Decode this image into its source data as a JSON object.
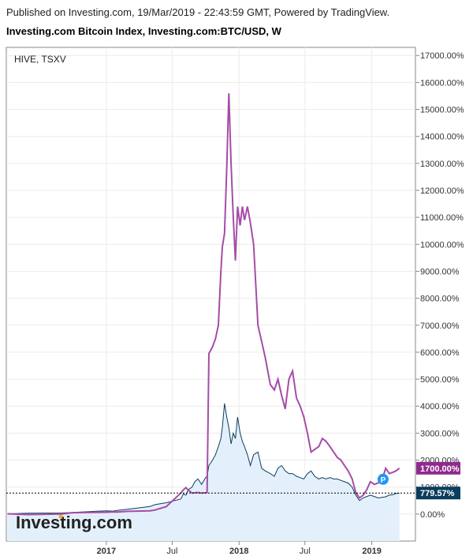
{
  "header": {
    "published": "Published on Investing.com, 19/Mar/2019 - 22:43:59 GMT, Powered by TradingView.",
    "title": "Investing.com Bitcoin Index, Investing.com:BTC/USD, W"
  },
  "colors": {
    "hive": "#a64ca6",
    "btc": "#0b3d5e",
    "area_fill": "#e3f0fb",
    "hive_badge": "#8e2a8e",
    "btc_badge": "#0b3d5e",
    "marker": "#2196f3"
  },
  "chart_data": {
    "type": "line",
    "legend": "HIVE, TSXV",
    "logo": "Investing.com",
    "marker_label": "P",
    "x_ticks": [
      "2017",
      "Jul",
      "2018",
      "Jul",
      "2019"
    ],
    "y_ticks": [
      "0.00%",
      "1000.00%",
      "2000.00%",
      "3000.00%",
      "4000.00%",
      "5000.00%",
      "6000.00%",
      "7000.00%",
      "8000.00%",
      "9000.00%",
      "10000.00%",
      "11000.00%",
      "12000.00%",
      "13000.00%",
      "14000.00%",
      "15000.00%",
      "16000.00%",
      "17000.00%"
    ],
    "ylim": [
      -1000,
      17300
    ],
    "xlim": [
      "2016-04",
      "2019-05"
    ],
    "grid": true,
    "last_values": {
      "hive_label": "1700.00%",
      "btc_label": "779.57%",
      "hive": 1700,
      "btc": 779.57
    },
    "series": [
      {
        "name": "HIVE, TSXV",
        "x": [
          "2016-04-04",
          "2016-06-01",
          "2016-09-01",
          "2016-10-01",
          "2017-01-01",
          "2017-01-20",
          "2017-02-01",
          "2017-03-01",
          "2017-05-01",
          "2017-05-15",
          "2017-06-15",
          "2017-07-25",
          "2017-08-01",
          "2017-08-08",
          "2017-08-14",
          "2017-08-25",
          "2017-09-01",
          "2017-09-10",
          "2017-09-20",
          "2017-10-01",
          "2017-10-05",
          "2017-10-10",
          "2017-10-20",
          "2017-10-28",
          "2017-11-05",
          "2017-11-12",
          "2017-11-16",
          "2017-11-22",
          "2017-11-28",
          "2017-12-04",
          "2017-12-10",
          "2017-12-16",
          "2017-12-22",
          "2017-12-28",
          "2018-01-04",
          "2018-01-10",
          "2018-01-16",
          "2018-01-24",
          "2018-02-01",
          "2018-02-10",
          "2018-02-22",
          "2018-03-04",
          "2018-03-14",
          "2018-03-28",
          "2018-04-08",
          "2018-04-18",
          "2018-04-28",
          "2018-05-08",
          "2018-05-18",
          "2018-05-28",
          "2018-06-08",
          "2018-06-18",
          "2018-06-28",
          "2018-07-08",
          "2018-07-18",
          "2018-07-28",
          "2018-08-08",
          "2018-08-18",
          "2018-08-28",
          "2018-09-08",
          "2018-09-18",
          "2018-09-28",
          "2018-10-08",
          "2018-10-18",
          "2018-10-28",
          "2018-11-08",
          "2018-11-18",
          "2018-11-28",
          "2018-12-08",
          "2018-12-18",
          "2018-12-28",
          "2019-01-08",
          "2019-01-18",
          "2019-01-28",
          "2019-02-08",
          "2019-02-18",
          "2019-02-28",
          "2019-03-08",
          "2019-03-18"
        ],
        "values": [
          10,
          -20,
          0,
          50,
          70,
          80,
          75,
          100,
          120,
          150,
          280,
          780,
          900,
          980,
          890,
          780,
          790,
          800,
          780,
          790,
          800,
          5950,
          6200,
          6500,
          7000,
          9000,
          9900,
          10400,
          12800,
          15600,
          13000,
          11000,
          9400,
          11400,
          10700,
          11400,
          10900,
          11400,
          10800,
          10000,
          7000,
          6400,
          5800,
          4800,
          4600,
          5000,
          4400,
          3900,
          5000,
          5300,
          4300,
          4000,
          3600,
          3000,
          2300,
          2400,
          2500,
          2800,
          2700,
          2500,
          2300,
          2100,
          2000,
          1800,
          1600,
          1300,
          800,
          600,
          700,
          900,
          1200,
          1100,
          1150,
          1200,
          1700,
          1500,
          1550,
          1600,
          1700
        ]
      },
      {
        "name": "BTC/USD",
        "x": [
          "2016-04-04",
          "2016-06-01",
          "2016-09-01",
          "2016-10-01",
          "2017-01-01",
          "2017-01-20",
          "2017-02-01",
          "2017-03-01",
          "2017-05-01",
          "2017-05-15",
          "2017-06-15",
          "2017-07-25",
          "2017-08-01",
          "2017-08-08",
          "2017-08-14",
          "2017-08-25",
          "2017-09-01",
          "2017-09-10",
          "2017-09-20",
          "2017-10-01",
          "2017-10-05",
          "2017-10-10",
          "2017-10-20",
          "2017-10-28",
          "2017-11-05",
          "2017-11-12",
          "2017-11-16",
          "2017-11-22",
          "2017-11-28",
          "2017-12-04",
          "2017-12-10",
          "2017-12-16",
          "2017-12-22",
          "2017-12-28",
          "2018-01-04",
          "2018-01-10",
          "2018-01-16",
          "2018-01-24",
          "2018-02-01",
          "2018-02-10",
          "2018-02-22",
          "2018-03-04",
          "2018-03-14",
          "2018-03-28",
          "2018-04-08",
          "2018-04-18",
          "2018-04-28",
          "2018-05-08",
          "2018-05-18",
          "2018-05-28",
          "2018-06-08",
          "2018-06-18",
          "2018-06-28",
          "2018-07-08",
          "2018-07-18",
          "2018-07-28",
          "2018-08-08",
          "2018-08-18",
          "2018-08-28",
          "2018-09-08",
          "2018-09-18",
          "2018-09-28",
          "2018-10-08",
          "2018-10-18",
          "2018-10-28",
          "2018-11-08",
          "2018-11-18",
          "2018-11-28",
          "2018-12-08",
          "2018-12-18",
          "2018-12-28",
          "2019-01-08",
          "2019-01-18",
          "2019-01-28",
          "2019-02-08",
          "2019-02-18",
          "2019-02-28",
          "2019-03-08",
          "2019-03-18"
        ],
        "values": [
          10,
          30,
          40,
          60,
          120,
          110,
          140,
          180,
          280,
          350,
          420,
          560,
          750,
          700,
          900,
          1000,
          1200,
          1300,
          1100,
          1350,
          1400,
          1800,
          2000,
          2200,
          2500,
          2800,
          3200,
          4100,
          3600,
          3200,
          2600,
          3000,
          2800,
          3600,
          3000,
          2700,
          2500,
          2200,
          1800,
          2200,
          2300,
          1700,
          1600,
          1500,
          1400,
          1700,
          1800,
          1600,
          1500,
          1500,
          1400,
          1350,
          1300,
          1500,
          1600,
          1400,
          1300,
          1350,
          1300,
          1350,
          1300,
          1300,
          1250,
          1200,
          1150,
          1000,
          700,
          500,
          600,
          650,
          700,
          650,
          600,
          620,
          640,
          700,
          720,
          760,
          780
        ]
      }
    ]
  }
}
